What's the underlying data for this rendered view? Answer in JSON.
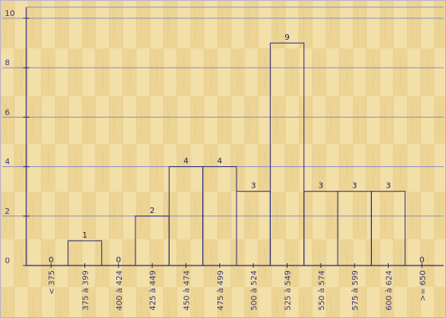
{
  "chart_data": {
    "type": "bar",
    "title": "",
    "xlabel": "",
    "ylabel": "",
    "ylim": [
      0,
      10
    ],
    "yticks": [
      0,
      2,
      4,
      6,
      8,
      10
    ],
    "grid": true,
    "categories": [
      "< 375",
      "375 à 399",
      "400 à 424",
      "425 à 449",
      "450 à 474",
      "475 à 499",
      "500 à 524",
      "525 à 549",
      "550 à 574",
      "575 à 599",
      "600 à 624",
      ">= 650"
    ],
    "values": [
      0,
      1,
      0,
      2,
      4,
      4,
      3,
      9,
      3,
      3,
      3,
      0
    ],
    "colors": {
      "background": "#f3dfa8",
      "wood_stripe": "#e9d089",
      "frame": "#2c2c78",
      "grid": "#8d8fc4",
      "bar_fill": "none"
    }
  }
}
